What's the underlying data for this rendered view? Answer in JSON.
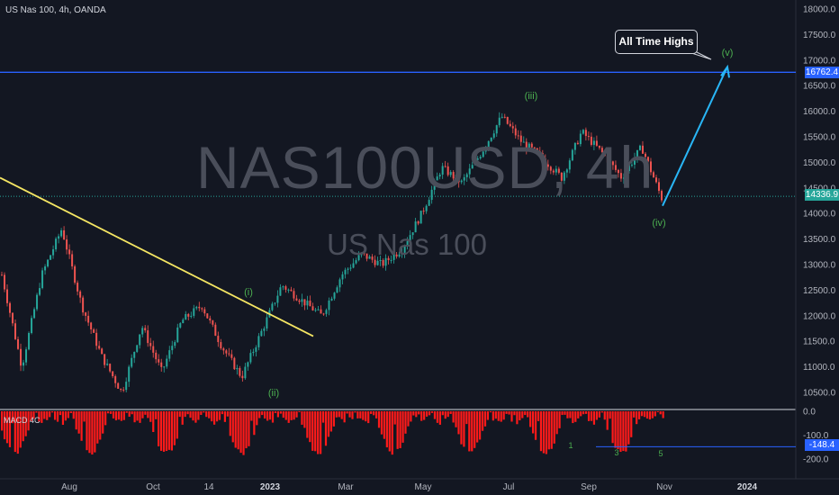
{
  "symbol_title": "US Nas 100, 4h, OANDA",
  "watermark": {
    "symbol": "NAS100USD, 4h",
    "name": "US Nas 100"
  },
  "callout": "All Time Highs",
  "indicator": "MACD 4C",
  "colors": {
    "background": "#131722",
    "candle_up": "#26a69a",
    "candle_down": "#ef5350",
    "trendline": "#f5e663",
    "projection": "#29b6f6",
    "resistance": "#2962ff",
    "wave_label": "#4caf50",
    "histogram": "#ff1a1a",
    "current_price_tag": "#26a69a",
    "level_tag": "#2962ff"
  },
  "chart_data": [
    {
      "type": "candlestick",
      "title": "US Nas 100, 4h, OANDA",
      "x_ticks": [
        "Aug",
        "Oct",
        "14",
        "2023",
        "Mar",
        "May",
        "Jul",
        "Sep",
        "Nov",
        "2024"
      ],
      "y_ticks": [
        10500,
        11000,
        11500,
        12000,
        12500,
        13000,
        13500,
        14000,
        14500,
        15000,
        15500,
        16000,
        16500,
        17000,
        17500,
        18000
      ],
      "ylim": [
        10000,
        18200
      ],
      "last_price": "14336.9",
      "resistance_level": "16762.4",
      "price_path": [
        12800,
        11000,
        12800,
        13700,
        12200,
        11200,
        10500,
        11800,
        10900,
        11900,
        12200,
        11400,
        10800,
        11700,
        12600,
        12300,
        12000,
        12800,
        13200,
        13000,
        13300,
        14000,
        14900,
        14600,
        15200,
        15900,
        15400,
        15100,
        14700,
        15600,
        15200,
        14700,
        15300,
        14300
      ],
      "wave_labels": [
        "(i)",
        "(ii)",
        "(iii)",
        "(iv)",
        "(v)"
      ],
      "trendline": {
        "from_price": 14700,
        "to_price": 11600
      },
      "projection": {
        "from_price": 14150,
        "to_price": 16762
      }
    },
    {
      "type": "bar",
      "title": "MACD 4C",
      "y_ticks": [
        "0.0",
        "-100.0",
        "-200.0"
      ],
      "ylim": [
        -250,
        10
      ],
      "current_value": "-148.4",
      "wave_counts": [
        "1",
        "3",
        "5"
      ]
    }
  ]
}
